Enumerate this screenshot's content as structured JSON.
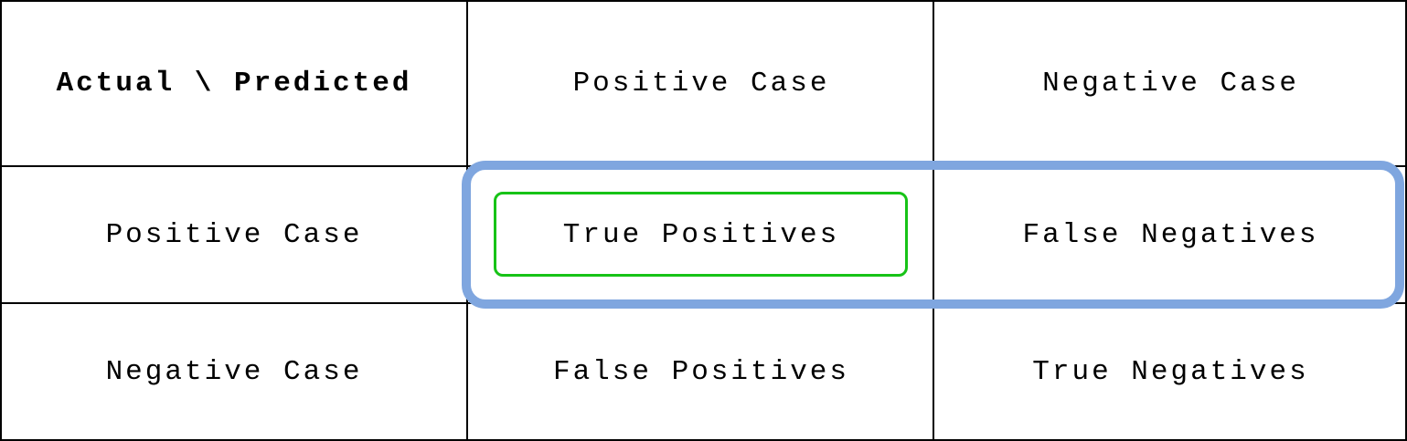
{
  "matrix": {
    "corner_label": "Actual \\ Predicted",
    "columns": [
      "Positive Case",
      "Negative Case"
    ],
    "rows": [
      {
        "label": "Positive Case",
        "cells": [
          "True Positives",
          "False Negatives"
        ]
      },
      {
        "label": "Negative Case",
        "cells": [
          "False Positives",
          "True Negatives"
        ]
      }
    ]
  },
  "colors": {
    "grid": "#000000",
    "row_highlight": "#7fa6df",
    "cell_highlight": "#17c317"
  }
}
